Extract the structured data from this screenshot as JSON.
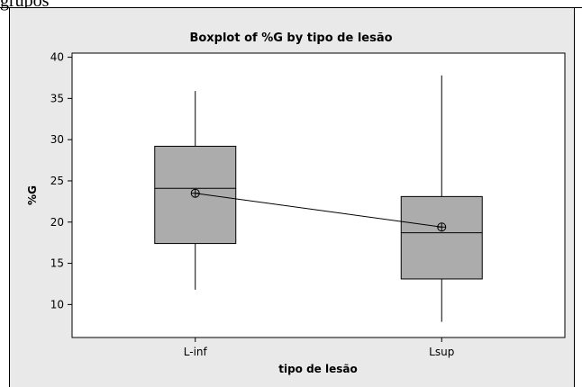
{
  "caption_fragment": "grupos",
  "chart_data": {
    "type": "box",
    "title": "Boxplot of %G by tipo de lesão",
    "xlabel": "tipo de lesão",
    "ylabel": "%G",
    "ylim": [
      6,
      40.5
    ],
    "yticks": [
      10,
      15,
      20,
      25,
      30,
      35,
      40
    ],
    "categories": [
      "L-inf",
      "Lsup"
    ],
    "boxes": [
      {
        "category": "L-inf",
        "min": 11.8,
        "q1": 17.4,
        "median": 24.1,
        "q3": 29.2,
        "max": 35.9,
        "mean": 23.5
      },
      {
        "category": "Lsup",
        "min": 7.9,
        "q1": 13.1,
        "median": 18.7,
        "q3": 23.1,
        "max": 37.8,
        "mean": 19.4
      }
    ],
    "mean_connect_line": true,
    "grid": false,
    "colors": {
      "outer_background": "#e9e9e9",
      "plot_background": "#ffffff",
      "box_fill": "#acacac",
      "line": "#000000"
    }
  }
}
